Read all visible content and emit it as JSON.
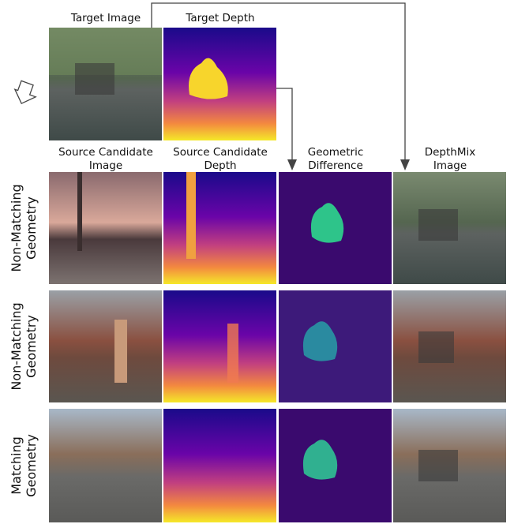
{
  "top_labels": [
    "Target Image",
    "Target Depth"
  ],
  "column_headers": [
    [
      "Source Candidate",
      "Image"
    ],
    [
      "Source Candidate",
      "Depth"
    ],
    [
      "Geometric",
      "Difference"
    ],
    [
      "DepthMix",
      "Image"
    ]
  ],
  "row_labels": [
    [
      "Non-Matching",
      "Geometry"
    ],
    [
      "Non-Matching",
      "Geometry"
    ],
    [
      "Matching",
      "Geometry"
    ]
  ]
}
